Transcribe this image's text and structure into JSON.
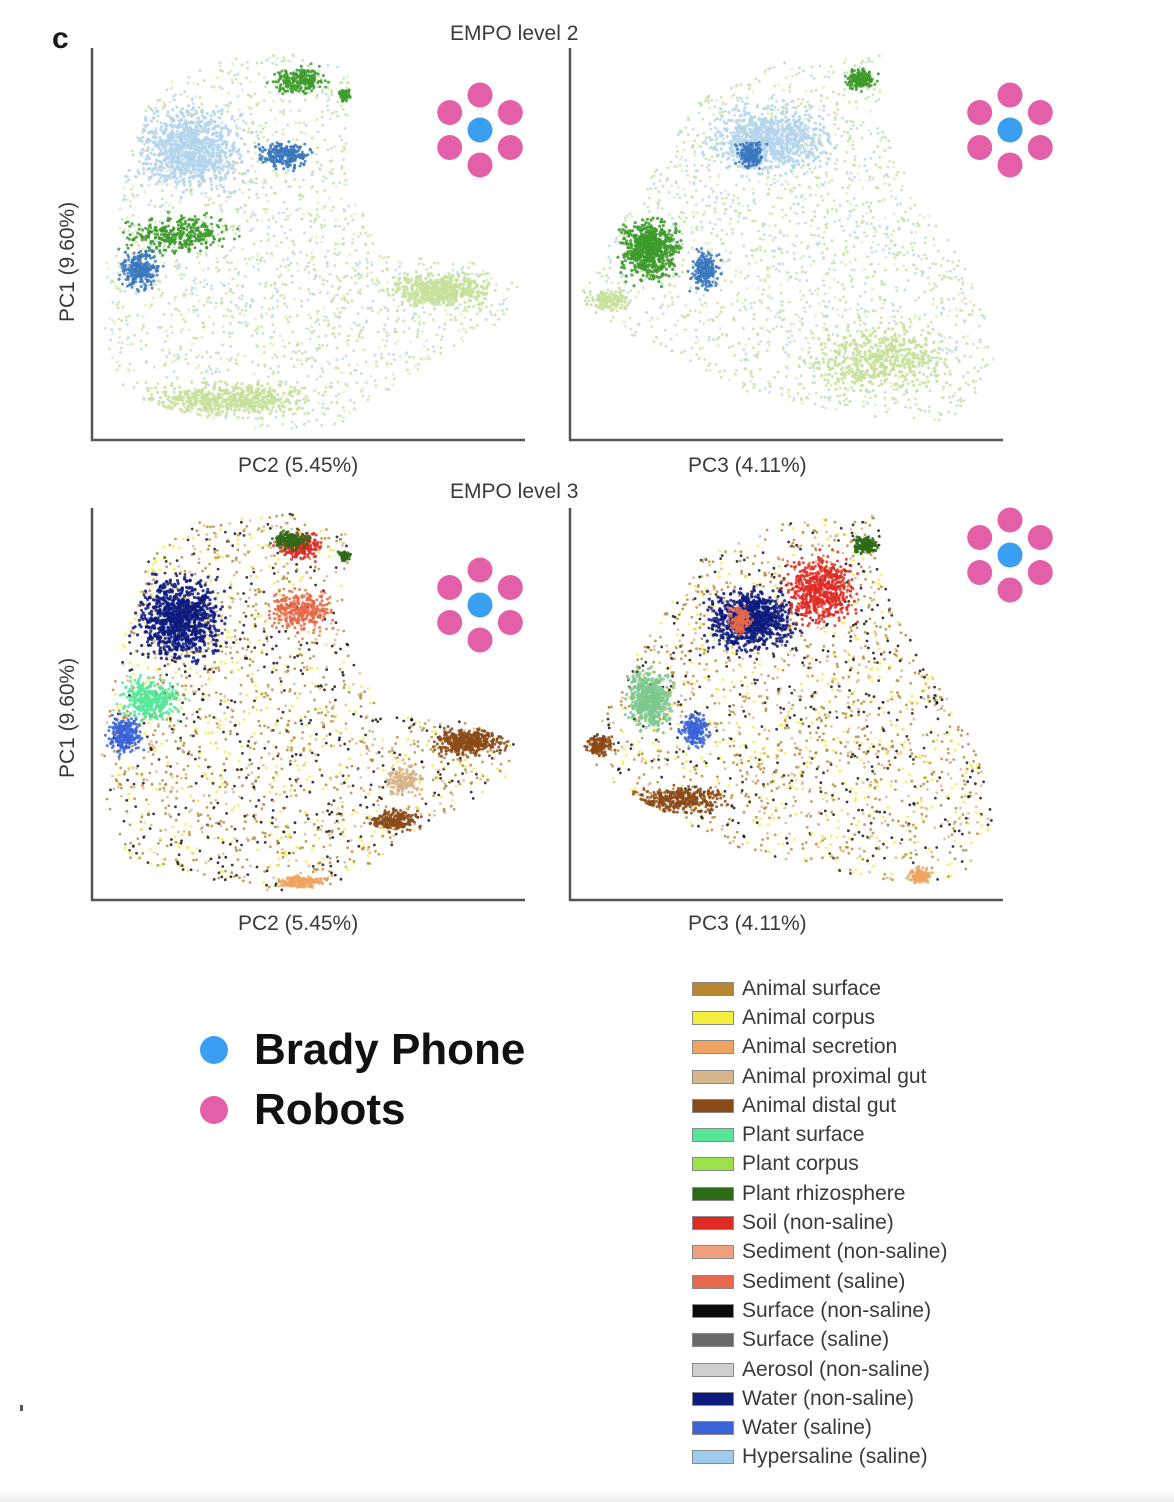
{
  "panel_letter": "c",
  "chart_data": [
    {
      "type": "scatter",
      "level_title": "EMPO level 2",
      "xlabel": "PC2 (5.45%)",
      "ylabel": "PC1 (9.60%)",
      "grid": false,
      "note_markers": "pink dots surround a blue dot (Brady Phone among Robots)"
    },
    {
      "type": "scatter",
      "level_title": "",
      "xlabel": "PC3 (4.11%)",
      "ylabel": "",
      "grid": false
    },
    {
      "type": "scatter",
      "level_title": "EMPO level 3",
      "xlabel": "PC2 (5.45%)",
      "ylabel": "PC1 (9.60%)",
      "grid": false
    },
    {
      "type": "scatter",
      "level_title": "",
      "xlabel": "PC3 (4.11%)",
      "ylabel": "",
      "grid": false
    }
  ],
  "overlay_legend": [
    {
      "label": "Brady Phone",
      "color": "#3a9ff0"
    },
    {
      "label": "Robots",
      "color": "#e35fa8"
    }
  ],
  "env_legend": [
    {
      "label": "Animal surface",
      "color": "#b8862e"
    },
    {
      "label": "Animal corpus",
      "color": "#f2ee3b"
    },
    {
      "label": "Animal secretion",
      "color": "#eea462"
    },
    {
      "label": "Animal proximal gut",
      "color": "#d8b48a"
    },
    {
      "label": "Animal distal gut",
      "color": "#8b4a16"
    },
    {
      "label": "Plant surface",
      "color": "#55e69a"
    },
    {
      "label": "Plant corpus",
      "color": "#9be24a"
    },
    {
      "label": "Plant rhizosphere",
      "color": "#2e6b17"
    },
    {
      "label": "Soil (non-saline)",
      "color": "#e02a24"
    },
    {
      "label": "Sediment (non-saline)",
      "color": "#f0a07a"
    },
    {
      "label": "Sediment (saline)",
      "color": "#e5694a"
    },
    {
      "label": "Surface (non-saline)",
      "color": "#0b0b0b"
    },
    {
      "label": "Surface (saline)",
      "color": "#6a6a6a"
    },
    {
      "label": "Aerosol (non-saline)",
      "color": "#cfcfcf"
    },
    {
      "label": "Water (non-saline)",
      "color": "#0d1a7e"
    },
    {
      "label": "Water (saline)",
      "color": "#3a64d8"
    },
    {
      "label": "Hypersaline (saline)",
      "color": "#9ccbee"
    }
  ],
  "level2_colors": {
    "light_blue": "#b3d3ec",
    "mid_blue": "#3a78bd",
    "green": "#3d9a2b",
    "light_green": "#c6e09a"
  },
  "marker_colors": {
    "robot": "#e35fa8",
    "phone": "#3a9ff0"
  }
}
